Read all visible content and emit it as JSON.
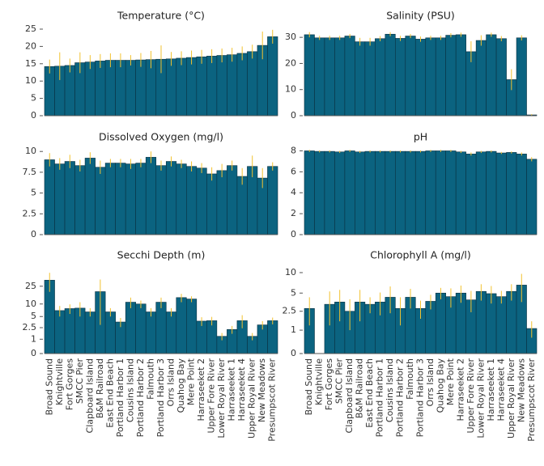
{
  "chart_data": [
    {
      "type": "bar",
      "title": "Temperature (°C)",
      "color": "#0b6380",
      "error_color": "#f2c230",
      "values": [
        14.2,
        14.3,
        14.5,
        15.3,
        15.5,
        15.8,
        16,
        16,
        16,
        16.1,
        16.2,
        16.3,
        16.4,
        16.6,
        16.8,
        17,
        17.2,
        17.4,
        17.6,
        18,
        18.5,
        20.3,
        22.8
      ],
      "errors": [
        2,
        4,
        2,
        3,
        2,
        2,
        2,
        2,
        1.5,
        2,
        2.5,
        4,
        2,
        2,
        2,
        2,
        2,
        2,
        2,
        2,
        2,
        4,
        2
      ],
      "ylim": [
        0,
        26.4
      ],
      "yticks": [
        0,
        5,
        10,
        15,
        20,
        25
      ]
    },
    {
      "type": "bar",
      "title": "Salinity (PSU)",
      "color": "#0b6380",
      "error_color": "#f2c230",
      "values": [
        31,
        29.8,
        29.8,
        29.8,
        30.5,
        28.3,
        28.3,
        29.5,
        31.2,
        29.6,
        30.5,
        29.3,
        29.8,
        29.8,
        30.8,
        31,
        24.5,
        28.8,
        31,
        29.5,
        13.8,
        29.8,
        0.3
      ],
      "errors": [
        1,
        0.8,
        0.8,
        0.8,
        0.8,
        1.5,
        1.5,
        1,
        0.8,
        1,
        0.8,
        1,
        0.8,
        0.8,
        0.8,
        0.8,
        4,
        2,
        0.8,
        1,
        4,
        1,
        0.3
      ],
      "ylim": [
        0,
        35
      ],
      "yticks": [
        0,
        10,
        20,
        30
      ]
    },
    {
      "type": "bar",
      "title": "Dissolved Oxygen (mg/l)",
      "color": "#0b6380",
      "error_color": "#f2c230",
      "values": [
        9,
        8.5,
        8.8,
        8.3,
        9.2,
        8.1,
        8.6,
        8.6,
        8.5,
        8.6,
        9.3,
        8.3,
        8.8,
        8.5,
        8.2,
        8,
        7.3,
        7.7,
        8.3,
        7,
        8.2,
        6.8,
        8.2
      ],
      "errors": [
        0.8,
        0.7,
        0.8,
        0.7,
        0.7,
        0.8,
        0.5,
        0.5,
        0.6,
        0.5,
        0.7,
        0.6,
        0.6,
        0.5,
        0.6,
        0.6,
        0.8,
        0.8,
        0.6,
        1,
        1.3,
        1.2,
        0.5
      ],
      "ylim": [
        0,
        10.7
      ],
      "yticks": [
        0,
        2.5,
        5,
        7.5,
        10
      ]
    },
    {
      "type": "bar",
      "title": "pH",
      "color": "#0b6380",
      "error_color": "#f2c230",
      "values": [
        8,
        7.95,
        7.95,
        7.9,
        8,
        7.9,
        7.95,
        7.95,
        7.95,
        7.95,
        7.95,
        7.95,
        8,
        8,
        8,
        7.9,
        7.7,
        7.9,
        7.95,
        7.8,
        7.85,
        7.7,
        7.2
      ],
      "errors": [
        0.1,
        0.1,
        0.1,
        0.1,
        0.1,
        0.1,
        0.1,
        0.1,
        0.1,
        0.1,
        0.1,
        0.1,
        0.1,
        0.1,
        0.1,
        0.1,
        0.15,
        0.1,
        0.1,
        0.1,
        0.1,
        0.15,
        0.2
      ],
      "ylim": [
        0,
        8.5
      ],
      "yticks": [
        0,
        2,
        4,
        6,
        8
      ]
    },
    {
      "type": "bar",
      "title": "Secchi Depth (m)",
      "color": "#0b6380",
      "error_color": "#f2c230",
      "scale": "log1p",
      "categories": [
        "Broad Sound",
        "Knightville",
        "Fort Gorges",
        "SMCC Pier",
        "Clapboard Island",
        "B&M Railroad",
        "East End Beach",
        "Portland Harbor 1",
        "Cousins Island",
        "Portland Harbor 2",
        "Falmouth",
        "Portland Harbor 3",
        "Orrs Island",
        "Quahog Bay",
        "Mere Point",
        "Harraseeket 2",
        "Upper Fore River",
        "Lower Royal River",
        "Harraseeket 1",
        "Harraseeket 4",
        "Upper Royal River",
        "New Meadows",
        "Presumpscot River"
      ],
      "values": [
        33.8,
        7,
        7.8,
        8,
        6.5,
        19,
        6.5,
        3.6,
        11,
        10,
        6.5,
        11,
        6.5,
        14,
        13,
        3.8,
        3.9,
        1.3,
        2.2,
        3.9,
        1.3,
        3,
        3.9
      ],
      "errors": [
        15,
        2,
        2,
        3,
        1.5,
        16,
        1.5,
        1,
        3,
        2,
        1.5,
        3,
        1.5,
        3,
        2,
        1,
        1,
        0.4,
        0.6,
        1.5,
        0.4,
        0.8,
        0.8
      ],
      "ylim": [
        0,
        65
      ],
      "yticks": [
        0,
        1,
        2.5,
        5,
        10,
        25
      ]
    },
    {
      "type": "bar",
      "title": "Chlorophyll A (mg/l)",
      "color": "#0b6380",
      "error_color": "#f2c230",
      "scale": "log1p",
      "categories": [
        "Broad Sound",
        "Knightville",
        "Fort Gorges",
        "SMCC Pier",
        "Clapboard Island",
        "B&M Railroad",
        "East End Beach",
        "Portland Harbor 1",
        "Cousins Island",
        "Portland Harbor 2",
        "Falmouth",
        "Portland Harbor 3",
        "Orrs Island",
        "Quahog Bay",
        "Mere Point",
        "Harraseeket 2",
        "Upper Fore River",
        "Lower Royal River",
        "Harraseeket 1",
        "Harraseeket 4",
        "Upper Royal River",
        "New Meadows",
        "Presumpscot River"
      ],
      "values": [
        2.8,
        null,
        3.3,
        3.6,
        2.5,
        3.6,
        3.3,
        3.6,
        4.3,
        2.8,
        4.3,
        2.8,
        3.7,
        5,
        4.4,
        5,
        3.9,
        5.3,
        4.9,
        4.4,
        5.3,
        6.6,
        1.1
      ],
      "errors": [
        1.5,
        null,
        2,
        2,
        1.5,
        2,
        1,
        1.5,
        2,
        1.5,
        1.5,
        1,
        1,
        1,
        1.5,
        1.5,
        1.5,
        1.5,
        1.5,
        1,
        1.5,
        3,
        0.5
      ],
      "ylim": [
        0,
        12
      ],
      "yticks": [
        0,
        1,
        2.5,
        5,
        10
      ]
    }
  ]
}
